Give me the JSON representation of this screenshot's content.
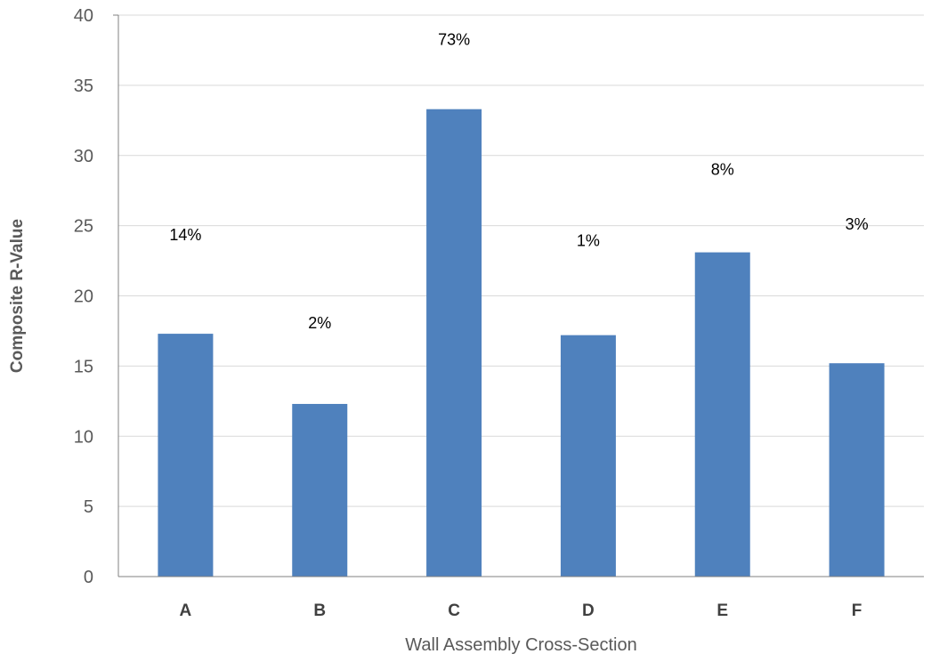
{
  "chart_data": {
    "type": "bar",
    "title": "",
    "xlabel": "Wall Assembly Cross-Section",
    "ylabel": "Composite R-Value",
    "ylim": [
      0,
      40
    ],
    "yticks": [
      0,
      5,
      10,
      15,
      20,
      25,
      30,
      35,
      40
    ],
    "grid": true,
    "legend": "none",
    "bar_color": "#4f81bd",
    "categories": [
      "A",
      "B",
      "C",
      "D",
      "E",
      "F"
    ],
    "values": [
      17.3,
      12.3,
      33.3,
      17.2,
      23.1,
      15.2
    ],
    "data_labels": [
      "14%",
      "2%",
      "73%",
      "1%",
      "8%",
      "3%"
    ]
  }
}
